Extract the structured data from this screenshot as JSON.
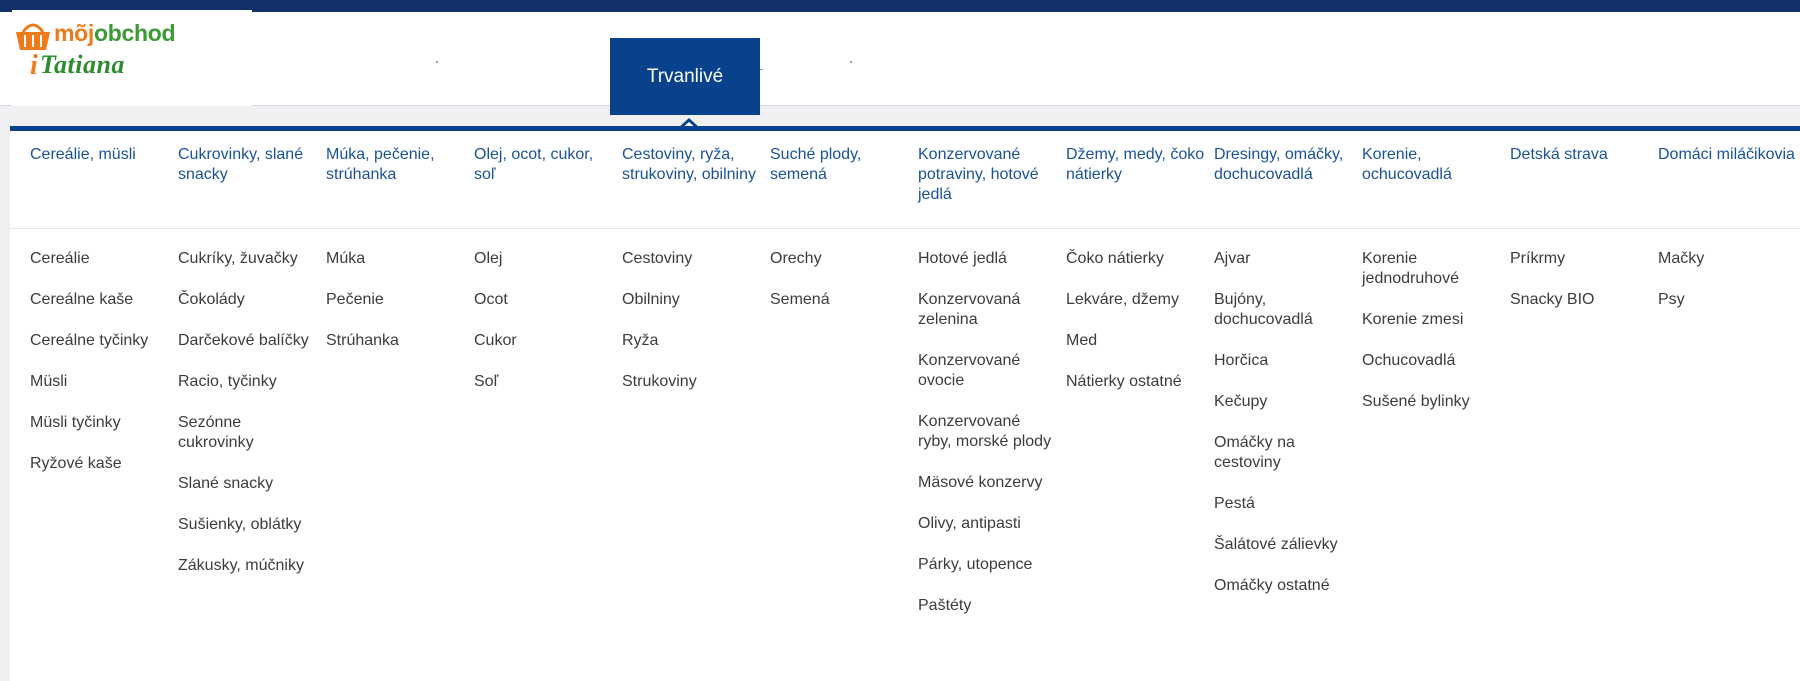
{
  "brand": {
    "line1_moj": "mõj",
    "line1_obchod": "obchod",
    "line2_i": "i",
    "line2_name": "Tatiana",
    "colors": {
      "orange": "#ef7a1a",
      "green": "#3b9a34"
    }
  },
  "nav": {
    "active_label": "Trvanlivé"
  },
  "colors": {
    "navy": "#08428c",
    "link": "#1a5296",
    "text": "#3c3c3c"
  },
  "menu": {
    "columns": [
      {
        "title": "Cereálie, müsli",
        "items": [
          "Cereálie",
          "Cereálne kaše",
          "Cereálne tyčinky",
          "Müsli",
          "Müsli tyčinky",
          "Ryžové kaše"
        ]
      },
      {
        "title": "Cukrovinky, slané snacky",
        "items": [
          "Cukríky, žuvačky",
          "Čokolády",
          "Darčekové balíčky",
          "Racio, tyčinky",
          "Sezónne cukrovinky",
          "Slané snacky",
          "Sušienky, oblátky",
          "Zákusky, múčniky"
        ]
      },
      {
        "title": "Múka, pečenie, strúhanka",
        "items": [
          "Múka",
          "Pečenie",
          "Strúhanka"
        ]
      },
      {
        "title": "Olej, ocot, cukor, soľ",
        "items": [
          "Olej",
          "Ocot",
          "Cukor",
          "Soľ"
        ]
      },
      {
        "title": "Cestoviny, ryža, strukoviny, obilniny",
        "items": [
          "Cestoviny",
          "Obilniny",
          "Ryža",
          "Strukoviny"
        ]
      },
      {
        "title": "Suché plody, semená",
        "items": [
          "Orechy",
          "Semená"
        ]
      },
      {
        "title": "Konzervované potraviny, hotové jedlá",
        "items": [
          "Hotové jedlá",
          "Konzervovaná zelenina",
          "Konzervované ovocie",
          "Konzervované ryby, morské plody",
          "Mäsové konzervy",
          "Olivy, antipasti",
          "Párky, utopence",
          "Paštéty"
        ]
      },
      {
        "title": "Džemy, medy, čoko nátierky",
        "items": [
          "Čoko nátierky",
          "Lekváre, džemy",
          "Med",
          "Nátierky ostatné"
        ]
      },
      {
        "title": "Dresingy, omáčky, dochucovadlá",
        "items": [
          "Ajvar",
          "Bujóny, dochucovadlá",
          "Horčica",
          "Kečupy",
          "Omáčky na cestoviny",
          "Pestá",
          "Šalátové zálievky",
          "Omáčky ostatné"
        ]
      },
      {
        "title": "Korenie, ochucovadlá",
        "items": [
          "Korenie jednodruhové",
          "Korenie zmesi",
          "Ochucovadlá",
          "Sušené bylinky"
        ]
      },
      {
        "title": "Detská strava",
        "items": [
          "Príkrmy",
          "Snacky BIO"
        ]
      },
      {
        "title": "Domáci miláčikovia",
        "items": [
          "Mačky",
          "Psy"
        ]
      }
    ]
  }
}
